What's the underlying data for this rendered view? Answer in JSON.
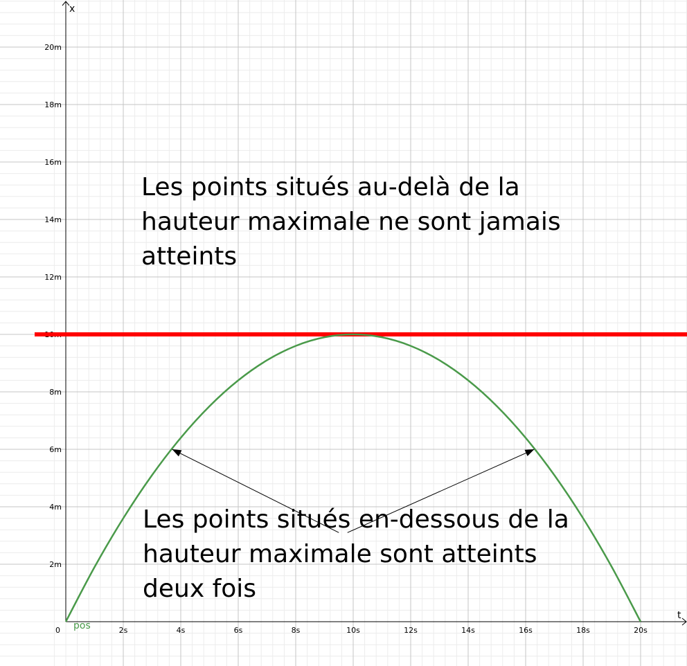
{
  "chart_data": {
    "type": "line",
    "xlabel": "t",
    "ylabel": "x",
    "xlim": [
      0,
      21.6
    ],
    "ylim": [
      0,
      21.6
    ],
    "grid": true,
    "origin_label": "0",
    "x_ticks": [
      {
        "value": 2,
        "label": "2s"
      },
      {
        "value": 4,
        "label": "4s"
      },
      {
        "value": 6,
        "label": "6s"
      },
      {
        "value": 8,
        "label": "8s"
      },
      {
        "value": 10,
        "label": "10s"
      },
      {
        "value": 12,
        "label": "12s"
      },
      {
        "value": 14,
        "label": "14s"
      },
      {
        "value": 16,
        "label": "16s"
      },
      {
        "value": 18,
        "label": "18s"
      },
      {
        "value": 20,
        "label": "20s"
      }
    ],
    "y_ticks": [
      {
        "value": 2,
        "label": "2m"
      },
      {
        "value": 4,
        "label": "4m"
      },
      {
        "value": 6,
        "label": "6m"
      },
      {
        "value": 8,
        "label": "8m"
      },
      {
        "value": 10,
        "label": "10m"
      },
      {
        "value": 12,
        "label": "12m"
      },
      {
        "value": 14,
        "label": "14m"
      },
      {
        "value": 16,
        "label": "16m"
      },
      {
        "value": 18,
        "label": "18m"
      },
      {
        "value": 20,
        "label": "20m"
      }
    ],
    "series": [
      {
        "name": "pos",
        "color": "#4a9a4a",
        "x": [
          0,
          1,
          2,
          3,
          4,
          5,
          6,
          7,
          8,
          9,
          10,
          11,
          12,
          13,
          14,
          15,
          16,
          17,
          18,
          19,
          20
        ],
        "y": [
          0,
          1.9,
          3.6,
          5.1,
          6.4,
          7.5,
          8.4,
          9.1,
          9.6,
          9.9,
          10,
          9.9,
          9.6,
          9.1,
          8.4,
          7.5,
          6.4,
          5.1,
          3.6,
          1.9,
          0
        ]
      }
    ],
    "hline": {
      "y": 10,
      "color": "#ff0000"
    },
    "arrows": [
      {
        "from": [
          9.5,
          3.1
        ],
        "to": [
          3.7,
          6.0
        ]
      },
      {
        "from": [
          9.8,
          3.1
        ],
        "to": [
          16.3,
          6.0
        ]
      }
    ],
    "annotations": [
      {
        "lines": [
          "Les points situés au-delà de la",
          "hauteur maximale ne sont jamais",
          "atteints"
        ]
      },
      {
        "lines": [
          "Les points situés en-dessous de la",
          "hauteur maximale sont atteints",
          "deux fois"
        ]
      }
    ]
  }
}
